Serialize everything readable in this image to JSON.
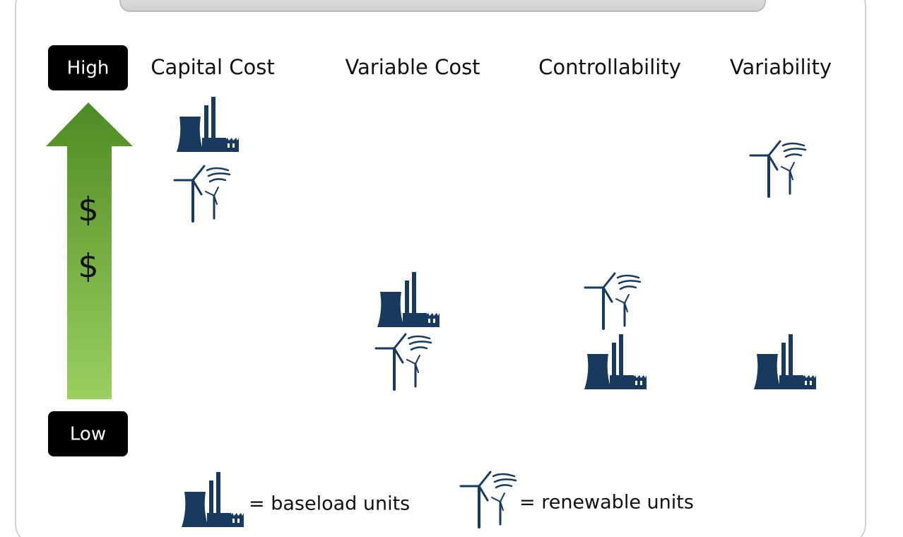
{
  "scale": {
    "high": "High",
    "low": "Low",
    "symbols": [
      "$",
      "$"
    ]
  },
  "columns": [
    "Capital Cost",
    "Variable Cost",
    "Controllability",
    "Variability"
  ],
  "legend": [
    {
      "label": "= baseload units"
    },
    {
      "label": "= renewable units"
    }
  ]
}
